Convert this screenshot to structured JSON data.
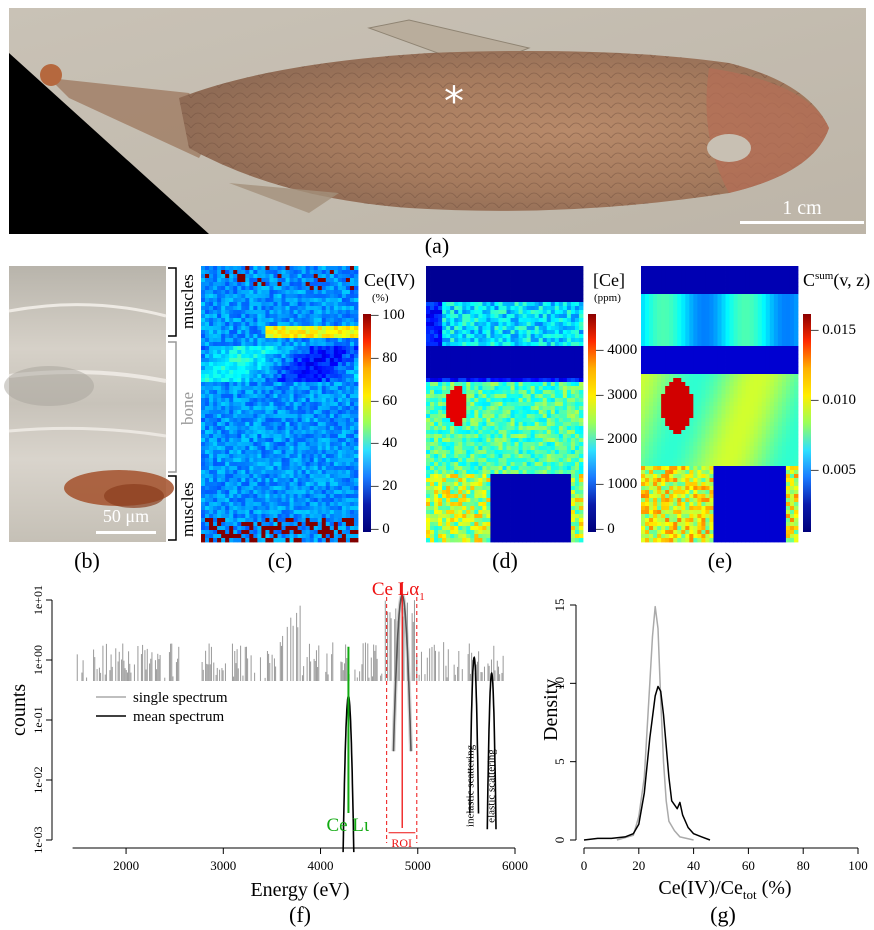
{
  "panels": {
    "a": "(a)",
    "b": "(b)",
    "c": "(c)",
    "d": "(d)",
    "e": "(e)",
    "f": "(f)",
    "g": "(g)"
  },
  "fossil": {
    "scale": "1 cm",
    "marker": "*"
  },
  "section": {
    "top": "muscles",
    "middle": "bone",
    "bottom": "muscles",
    "scale": "50 μm"
  },
  "maps": {
    "c": {
      "title": "Ce(IV)",
      "unit": "(%)",
      "ticks": [
        "100",
        "80",
        "60",
        "40",
        "20",
        "0"
      ]
    },
    "d": {
      "title": "[Ce]",
      "unit": "(ppm)",
      "ticks": [
        "4000",
        "3000",
        "2000",
        "1000",
        "0"
      ]
    },
    "e": {
      "title_main": "C",
      "title_sup": "sum",
      "title_args": "(v, z)",
      "ticks": [
        "0.015",
        "0.010",
        "0.005"
      ]
    }
  },
  "chart_data": [
    {
      "type": "line",
      "xlabel": "Energy (eV)",
      "ylabel": "counts",
      "xlim": [
        1300,
        6000
      ],
      "ylim_log10": [
        -3,
        1
      ],
      "yscale": "log",
      "x_ticks": [
        "2000",
        "3000",
        "4000",
        "5000",
        "6000"
      ],
      "y_ticks": [
        "1e-03",
        "1e-02",
        "1e-01",
        "1e+00",
        "1e+01"
      ],
      "legend": [
        "single spectrum",
        "mean spectrum"
      ],
      "annotations": {
        "ce_la1_main": "Ce Lα",
        "ce_la1_sub": "1",
        "ce_ll": "Ce Lι",
        "roi": "ROI",
        "inelastic": "inelastic scattering",
        "elastic": "elastic scattering"
      },
      "peaks": [
        {
          "label": "Ce Lι",
          "center": 4287,
          "peak_counts": 0.25
        },
        {
          "label": "Ce Lα1",
          "center": 4840,
          "peak_counts": 12
        },
        {
          "label": "inelastic scattering",
          "center": 5580,
          "peak_counts": 1.1
        },
        {
          "label": "elastic scattering",
          "center": 5760,
          "peak_counts": 0.6
        }
      ],
      "roi_range": [
        4680,
        4990
      ]
    },
    {
      "type": "line",
      "xlabel_main": "Ce(IV)/Ce",
      "xlabel_sub": "tot",
      "xlabel_unit": " (%)",
      "ylabel": "Density",
      "xlim": [
        0,
        100
      ],
      "ylim": [
        0,
        15
      ],
      "x_ticks": [
        "0",
        "20",
        "40",
        "60",
        "80",
        "100"
      ],
      "y_ticks": [
        "0",
        "5",
        "10",
        "15"
      ],
      "series": [
        {
          "color": "#aaaaaa",
          "x": [
            12,
            18,
            20,
            22,
            24,
            25,
            26,
            27,
            28,
            29,
            30,
            31,
            33,
            35,
            40
          ],
          "y": [
            0,
            0.3,
            1.5,
            4.0,
            10.0,
            13.0,
            14.9,
            13.5,
            9.0,
            5.0,
            2.5,
            1.2,
            0.6,
            0.2,
            0
          ]
        },
        {
          "color": "#000000",
          "x": [
            0,
            5,
            10,
            15,
            18,
            20,
            22,
            24,
            26,
            27,
            28,
            29,
            30,
            31,
            32,
            34,
            35,
            36,
            38,
            40,
            43,
            46
          ],
          "y": [
            0,
            0.1,
            0.1,
            0.2,
            0.4,
            1.0,
            3.0,
            6.5,
            9.2,
            9.8,
            9.5,
            8.0,
            6.0,
            4.0,
            2.5,
            2.0,
            2.4,
            1.6,
            0.8,
            0.4,
            0.2,
            0
          ]
        }
      ]
    }
  ],
  "colors": {
    "green": "#11aa11",
    "red": "#ee1111",
    "grey": "#aaaaaa"
  }
}
